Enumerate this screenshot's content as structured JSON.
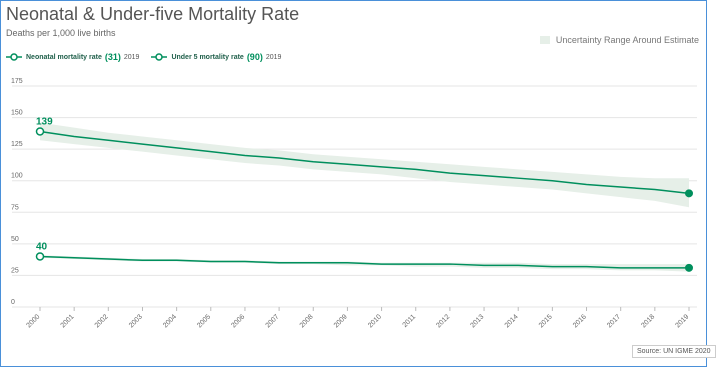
{
  "chart_data": {
    "type": "line",
    "title": "Neonatal & Under-five Mortality Rate",
    "subtitle": "Deaths per 1,000 live births",
    "x": [
      "2000",
      "2001",
      "2002",
      "2003",
      "2004",
      "2005",
      "2006",
      "2007",
      "2008",
      "2009",
      "2010",
      "2011",
      "2012",
      "2013",
      "2014",
      "2015",
      "2016",
      "2017",
      "2018",
      "2019"
    ],
    "ylim": [
      0,
      175
    ],
    "yticks": [
      0,
      25,
      50,
      75,
      100,
      125,
      150,
      175
    ],
    "grid": true,
    "series": [
      {
        "name": "Neonatal mortality rate",
        "latest_value": "(31)",
        "latest_year": "2019",
        "color": "#008f5d",
        "values": [
          40,
          39,
          38,
          37,
          37,
          36,
          36,
          35,
          35,
          35,
          34,
          34,
          34,
          33,
          33,
          32,
          32,
          31,
          31,
          31
        ],
        "uncertainty_low": [
          39,
          38,
          37,
          36,
          36,
          35,
          35,
          34,
          34,
          33,
          33,
          32,
          32,
          31,
          31,
          30,
          30,
          29,
          29,
          28
        ],
        "uncertainty_high": [
          41,
          40,
          39,
          38,
          38,
          37,
          37,
          36,
          36,
          36,
          35,
          35,
          35,
          35,
          35,
          34,
          34,
          34,
          34,
          34
        ],
        "start_label": "40"
      },
      {
        "name": "Under 5 mortality rate",
        "latest_value": "(90)",
        "latest_year": "2019",
        "color": "#008f5d",
        "values": [
          139,
          135,
          132,
          129,
          126,
          123,
          120,
          118,
          115,
          113,
          111,
          109,
          106,
          104,
          102,
          100,
          97,
          95,
          93,
          90
        ],
        "uncertainty_low": [
          132,
          129,
          126,
          123,
          120,
          117,
          114,
          112,
          109,
          107,
          105,
          102,
          99,
          97,
          95,
          93,
          90,
          87,
          84,
          79
        ],
        "uncertainty_high": [
          146,
          142,
          138,
          135,
          132,
          129,
          126,
          124,
          121,
          119,
          117,
          115,
          113,
          111,
          109,
          107,
          105,
          103,
          102,
          102
        ],
        "start_label": "139"
      }
    ],
    "uncertainty_label": "Uncertainty Range Around Estimate",
    "uncertainty_color": "#e6efe8",
    "grid_color": "#e5e5e5",
    "source": "Source: UN IGME 2020"
  }
}
